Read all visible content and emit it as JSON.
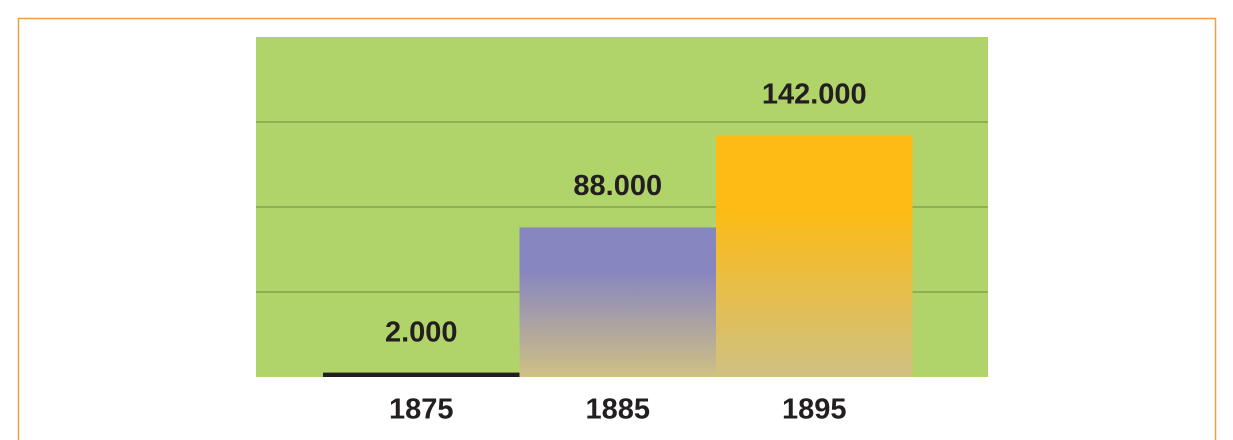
{
  "chart_data": {
    "type": "bar",
    "categories": [
      "1875",
      "1885",
      "1895"
    ],
    "values": [
      2000,
      88000,
      142000
    ],
    "value_labels": [
      "2.000",
      "88.000",
      "142.000"
    ],
    "colors": [
      "#231f20",
      "#8886c0",
      "#fdbb13"
    ],
    "ylim": [
      0,
      200000
    ],
    "yticks": [
      0,
      50000,
      100000,
      150000,
      200000
    ],
    "grid": true
  }
}
